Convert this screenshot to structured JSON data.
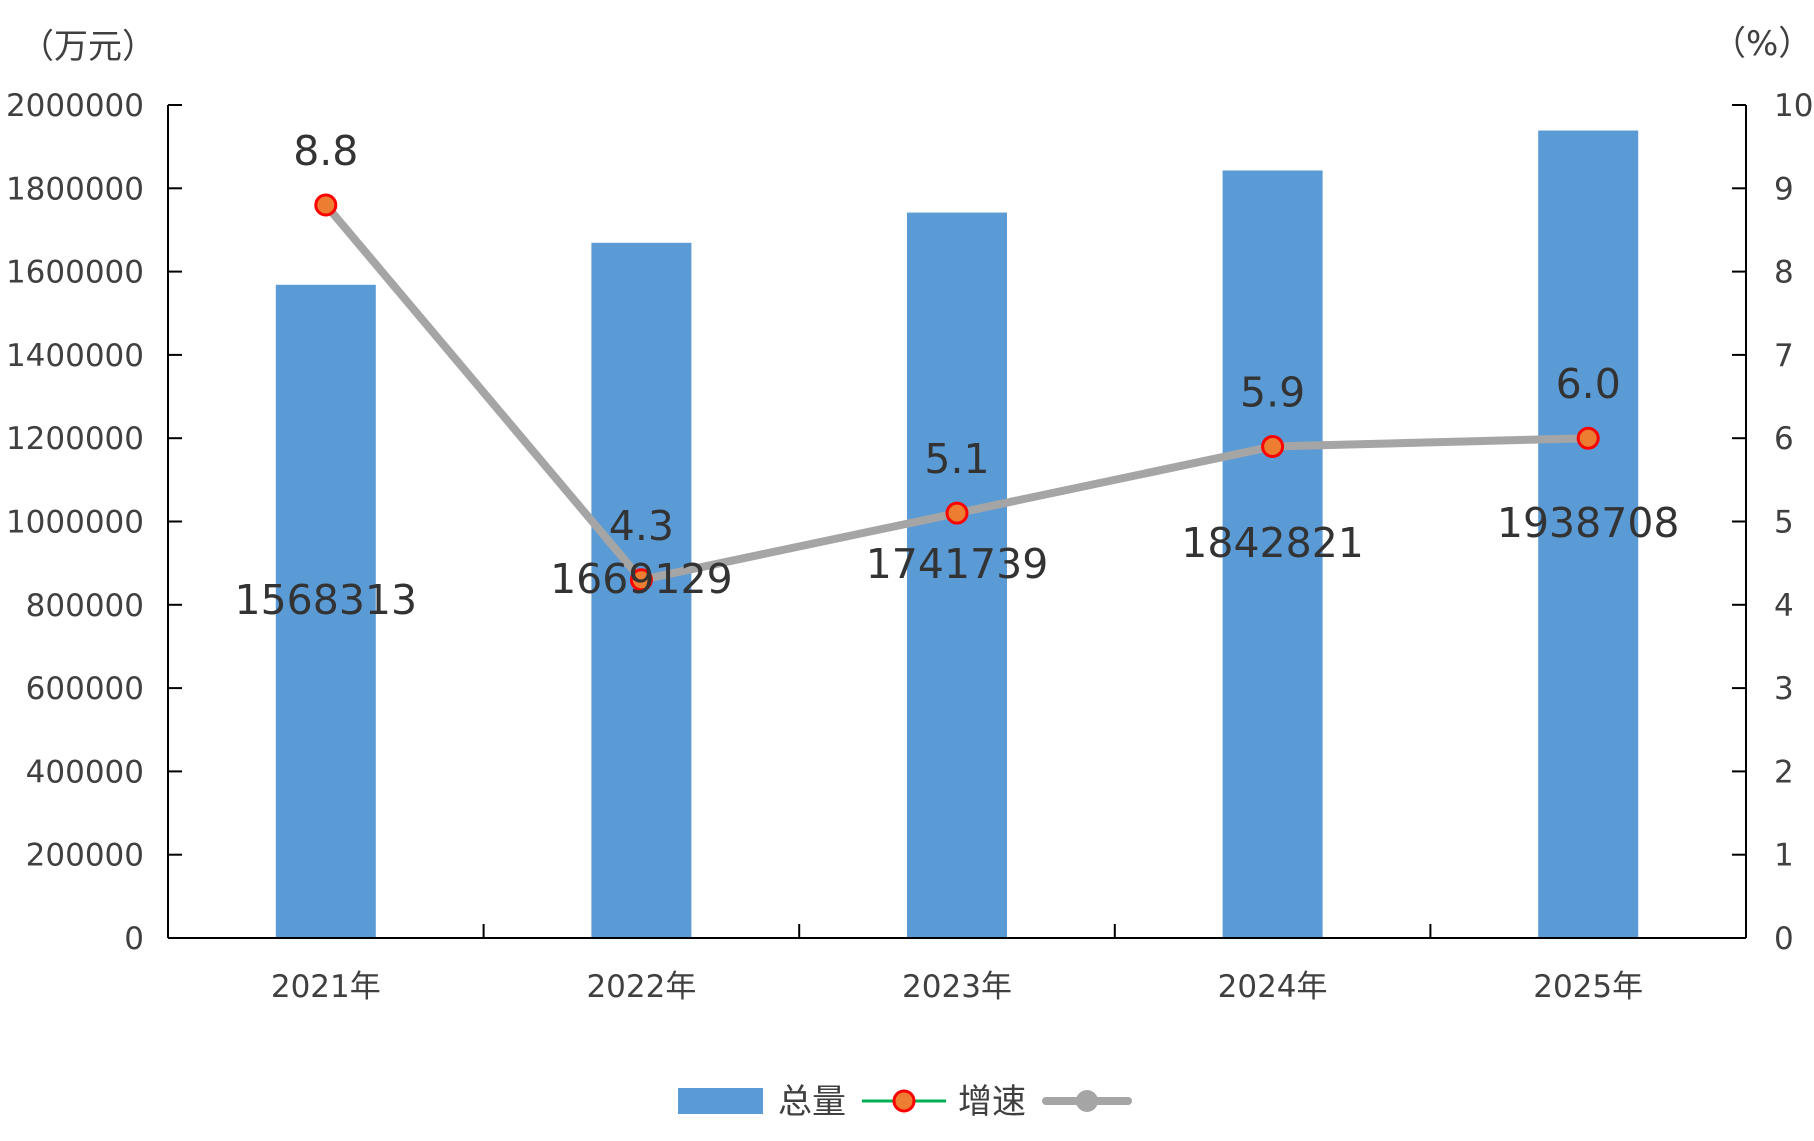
{
  "chart_data": {
    "type": "bar+line",
    "categories": [
      "2021年",
      "2022年",
      "2023年",
      "2024年",
      "2025年"
    ],
    "y_left_label": "（万元）",
    "y_right_label": "（%）",
    "y_left_range": [
      0,
      2000000
    ],
    "y_left_ticks": [
      0,
      200000,
      400000,
      600000,
      800000,
      1000000,
      1200000,
      1400000,
      1600000,
      1800000,
      2000000
    ],
    "y_right_range": [
      0,
      10
    ],
    "y_right_ticks": [
      0,
      1,
      2,
      3,
      4,
      5,
      6,
      7,
      8,
      9,
      10
    ],
    "series": [
      {
        "name": "总量",
        "type": "bar",
        "axis": "left",
        "color": "#5B9BD5",
        "values": [
          1568313,
          1669129,
          1741739,
          1842821,
          1938708
        ]
      },
      {
        "name": "增速",
        "type": "line",
        "axis": "right",
        "color": "#A5A5A5",
        "marker_fill": "#ED7D31",
        "marker_edge": "#FF0000",
        "values": [
          8.8,
          4.3,
          5.1,
          5.9,
          6.0
        ],
        "labels": [
          "8.8",
          "4.3",
          "5.1",
          "5.9",
          "6.0"
        ]
      }
    ],
    "legend": {
      "position": "bottom",
      "items": [
        "总量",
        "增速"
      ]
    },
    "grid": false
  }
}
